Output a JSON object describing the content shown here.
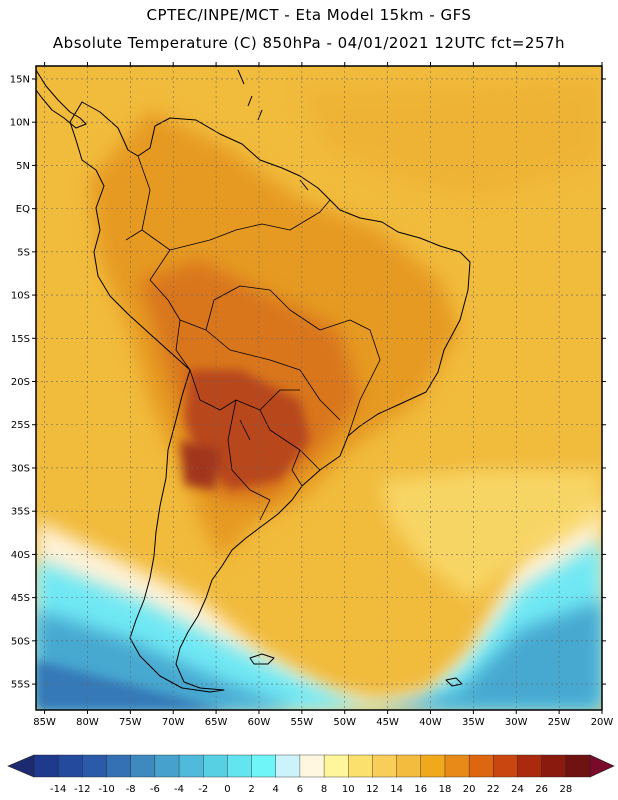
{
  "header": {
    "line1": "CPTEC/INPE/MCT -  Eta Model 15km - GFS",
    "line2": "Absolute Temperature (C) 850hPa - 04/01/2021 12UTC fct=257h"
  },
  "map": {
    "lat_labels": [
      "15N",
      "10N",
      "5N",
      "EQ",
      "5S",
      "10S",
      "15S",
      "20S",
      "25S",
      "30S",
      "35S",
      "40S",
      "45S",
      "50S",
      "55S"
    ],
    "lat_values": [
      15,
      10,
      5,
      0,
      -5,
      -10,
      -15,
      -20,
      -25,
      -30,
      -35,
      -40,
      -45,
      -50,
      -55
    ],
    "lon_labels": [
      "85W",
      "80W",
      "75W",
      "70W",
      "65W",
      "60W",
      "55W",
      "50W",
      "45W",
      "40W",
      "35W",
      "30W",
      "25W",
      "20W"
    ],
    "lon_values": [
      -85,
      -80,
      -75,
      -70,
      -65,
      -60,
      -55,
      -50,
      -45,
      -40,
      -35,
      -30,
      -25,
      -20
    ],
    "lat_range": [
      -58,
      16.5
    ],
    "lon_range": [
      -86,
      -20
    ]
  },
  "colorbar": {
    "labels": [
      "-14",
      "-12",
      "-10",
      "-8",
      "-6",
      "-4",
      "-2",
      "0",
      "2",
      "4",
      "6",
      "8",
      "10",
      "12",
      "14",
      "16",
      "18",
      "20",
      "22",
      "24",
      "26",
      "28"
    ],
    "colors": [
      "#1e3a8c",
      "#234a9c",
      "#2b5aa8",
      "#3471b4",
      "#3e8ac0",
      "#46a2cc",
      "#4fbadb",
      "#58d0e4",
      "#64e4ee",
      "#6ff4f8",
      "#ccf3fb",
      "#fff7e0",
      "#fff59a",
      "#fbe06e",
      "#f8cd5a",
      "#f4bc3e",
      "#f0a81c",
      "#e88a18",
      "#df6610",
      "#c94610",
      "#ab2a0e",
      "#8a1a0e",
      "#6e1212"
    ],
    "left_arrow": "#1e2a70",
    "right_arrow": "#7a0a2a"
  }
}
